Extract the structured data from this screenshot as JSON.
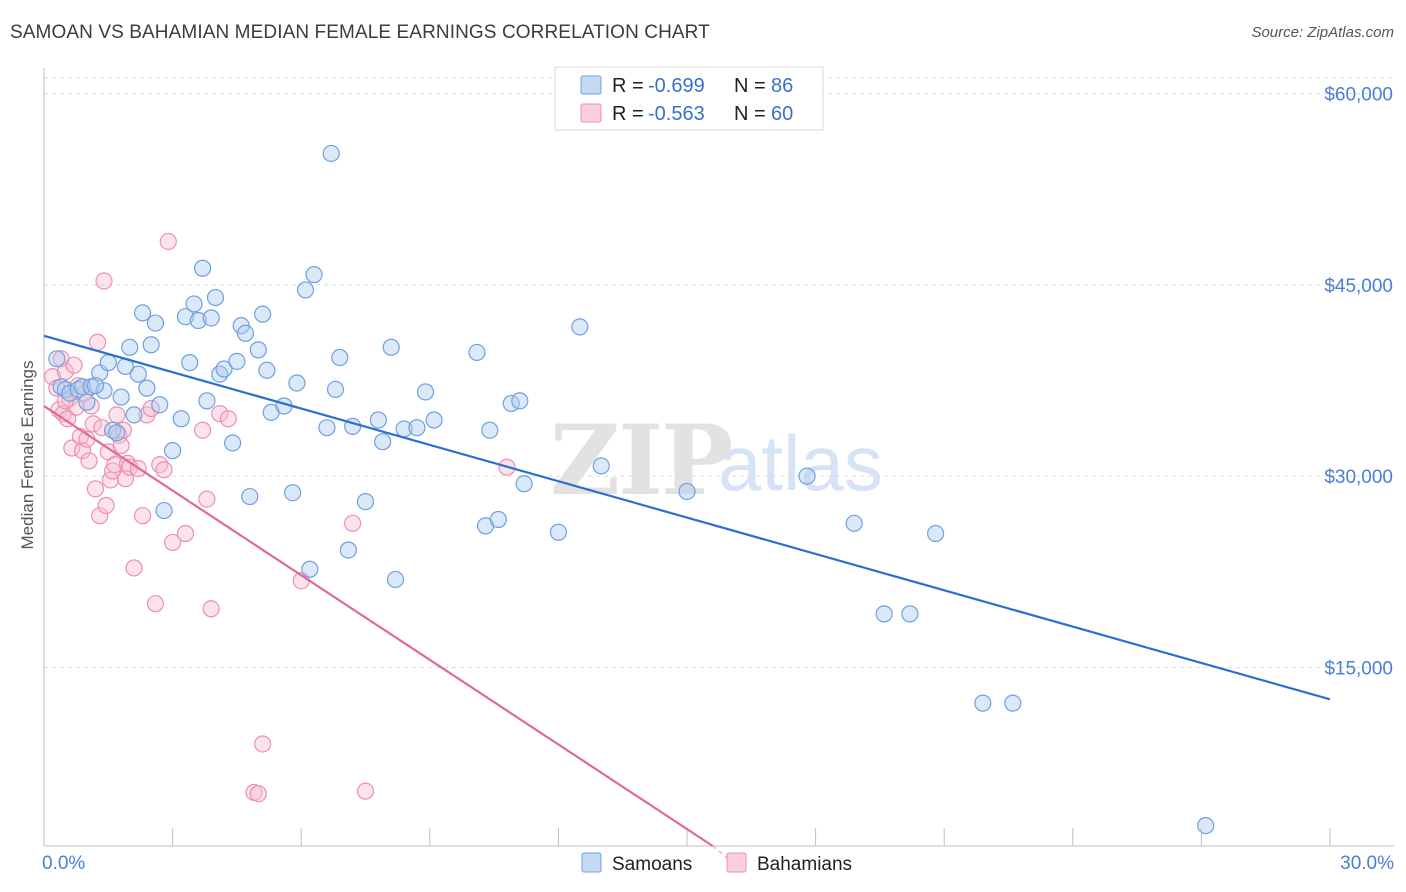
{
  "header": {
    "title": "SAMOAN VS BAHAMIAN MEDIAN FEMALE EARNINGS CORRELATION CHART",
    "source": "Source: ZipAtlas.com"
  },
  "watermark": {
    "zip": "ZIP",
    "atlas": "atlas"
  },
  "legend": {
    "rows": [
      {
        "r_label": "R = ",
        "r_value": "-0.699",
        "n_label": "N = ",
        "n_value": "86",
        "color": "#6fa0e0"
      },
      {
        "r_label": "R = ",
        "r_value": "-0.563",
        "n_label": "N = ",
        "n_value": "60",
        "color": "#ee8fb0"
      }
    ]
  },
  "bottom_legend": [
    "Samoans",
    "Bahamians"
  ],
  "chart_data": {
    "type": "scatter",
    "title": "SAMOAN VS BAHAMIAN MEDIAN FEMALE EARNINGS CORRELATION CHART",
    "xlabel": "",
    "ylabel": "Median Female Earnings",
    "xlim": [
      0,
      30
    ],
    "ylim": [
      1000,
      62000
    ],
    "x_tick_labels": [
      "0.0%",
      "30.0%"
    ],
    "y_ticks": [
      15000,
      30000,
      45000,
      60000
    ],
    "y_tick_labels": [
      "$15,000",
      "$30,000",
      "$45,000",
      "$60,000"
    ],
    "grid": "horizontal dashed",
    "legend_position": "top-center",
    "colors": {
      "samoans": "#6fa0e0",
      "samoans_line": "#2a6fd1",
      "bahamians": "#ee8fb0",
      "bahamians_line": "#e0689a"
    },
    "series": [
      {
        "name": "Samoans",
        "trend": {
          "x": [
            0,
            30
          ],
          "y": [
            41000,
            12500
          ]
        },
        "points": [
          [
            0.3,
            39200
          ],
          [
            0.4,
            37000
          ],
          [
            0.5,
            36800
          ],
          [
            0.6,
            36500
          ],
          [
            0.8,
            36800
          ],
          [
            0.9,
            37000
          ],
          [
            1.0,
            35800
          ],
          [
            1.1,
            37000
          ],
          [
            1.3,
            38100
          ],
          [
            1.4,
            36700
          ],
          [
            1.5,
            38900
          ],
          [
            1.6,
            33600
          ],
          [
            1.7,
            33400
          ],
          [
            1.8,
            36200
          ],
          [
            2.0,
            40100
          ],
          [
            2.1,
            34800
          ],
          [
            2.2,
            38000
          ],
          [
            2.3,
            42800
          ],
          [
            2.5,
            40300
          ],
          [
            2.6,
            42000
          ],
          [
            2.7,
            35600
          ],
          [
            2.8,
            27300
          ],
          [
            3.0,
            32000
          ],
          [
            3.2,
            34500
          ],
          [
            3.3,
            42500
          ],
          [
            3.4,
            38900
          ],
          [
            3.5,
            43500
          ],
          [
            3.6,
            42200
          ],
          [
            3.7,
            46300
          ],
          [
            3.8,
            35900
          ],
          [
            3.9,
            42400
          ],
          [
            4.0,
            44000
          ],
          [
            4.1,
            38000
          ],
          [
            4.2,
            38400
          ],
          [
            4.4,
            32600
          ],
          [
            4.5,
            39000
          ],
          [
            4.6,
            41800
          ],
          [
            4.7,
            41200
          ],
          [
            4.8,
            28400
          ],
          [
            5.0,
            39900
          ],
          [
            5.1,
            42700
          ],
          [
            5.2,
            38300
          ],
          [
            5.3,
            35000
          ],
          [
            5.6,
            35500
          ],
          [
            5.8,
            28700
          ],
          [
            6.1,
            44600
          ],
          [
            6.2,
            22700
          ],
          [
            6.3,
            45800
          ],
          [
            6.6,
            33800
          ],
          [
            6.8,
            36800
          ],
          [
            6.9,
            39300
          ],
          [
            7.1,
            24200
          ],
          [
            7.2,
            33900
          ],
          [
            7.5,
            28000
          ],
          [
            7.8,
            34400
          ],
          [
            7.9,
            32700
          ],
          [
            8.1,
            40100
          ],
          [
            8.2,
            21900
          ],
          [
            8.4,
            33700
          ],
          [
            8.7,
            33800
          ],
          [
            8.9,
            36600
          ],
          [
            9.1,
            34400
          ],
          [
            10.1,
            39700
          ],
          [
            10.3,
            26100
          ],
          [
            10.4,
            33600
          ],
          [
            10.6,
            26600
          ],
          [
            10.9,
            35700
          ],
          [
            11.1,
            35900
          ],
          [
            11.2,
            29400
          ],
          [
            12.0,
            25600
          ],
          [
            12.5,
            41700
          ],
          [
            13.0,
            30800
          ],
          [
            15.0,
            28800
          ],
          [
            17.8,
            30000
          ],
          [
            18.9,
            26300
          ],
          [
            19.6,
            19200
          ],
          [
            20.2,
            19200
          ],
          [
            20.8,
            25500
          ],
          [
            21.9,
            12200
          ],
          [
            22.6,
            12200
          ],
          [
            27.1,
            2600
          ],
          [
            6.7,
            55300
          ],
          [
            1.2,
            37100
          ],
          [
            1.9,
            38600
          ],
          [
            2.4,
            36900
          ],
          [
            5.9,
            37300
          ]
        ]
      },
      {
        "name": "Bahamians",
        "trend": {
          "x": [
            0,
            15.6
          ],
          "y": [
            35500,
            1000
          ]
        },
        "points": [
          [
            0.2,
            37800
          ],
          [
            0.3,
            36900
          ],
          [
            0.35,
            35200
          ],
          [
            0.4,
            39200
          ],
          [
            0.45,
            34900
          ],
          [
            0.5,
            38200
          ],
          [
            0.55,
            34500
          ],
          [
            0.6,
            36100
          ],
          [
            0.65,
            32200
          ],
          [
            0.7,
            38700
          ],
          [
            0.75,
            35400
          ],
          [
            0.8,
            37100
          ],
          [
            0.85,
            33100
          ],
          [
            0.9,
            32000
          ],
          [
            0.95,
            36500
          ],
          [
            1.0,
            32900
          ],
          [
            1.05,
            31200
          ],
          [
            1.1,
            35500
          ],
          [
            1.15,
            34100
          ],
          [
            1.2,
            29000
          ],
          [
            1.25,
            40500
          ],
          [
            1.3,
            26900
          ],
          [
            1.35,
            33800
          ],
          [
            1.4,
            45300
          ],
          [
            1.45,
            27700
          ],
          [
            1.5,
            31900
          ],
          [
            1.55,
            29700
          ],
          [
            1.6,
            30400
          ],
          [
            1.65,
            30900
          ],
          [
            1.7,
            34800
          ],
          [
            1.75,
            33200
          ],
          [
            1.8,
            32400
          ],
          [
            1.85,
            33600
          ],
          [
            1.9,
            29800
          ],
          [
            1.95,
            31000
          ],
          [
            2.0,
            30700
          ],
          [
            2.1,
            22800
          ],
          [
            2.2,
            30600
          ],
          [
            2.3,
            26900
          ],
          [
            2.4,
            34800
          ],
          [
            2.5,
            35300
          ],
          [
            2.6,
            20000
          ],
          [
            2.7,
            30900
          ],
          [
            2.8,
            30500
          ],
          [
            2.9,
            48400
          ],
          [
            3.0,
            24800
          ],
          [
            3.3,
            25500
          ],
          [
            3.7,
            33600
          ],
          [
            3.8,
            28200
          ],
          [
            3.9,
            19600
          ],
          [
            4.1,
            34900
          ],
          [
            4.3,
            34500
          ],
          [
            4.9,
            5200
          ],
          [
            5.1,
            9000
          ],
          [
            5.0,
            5100
          ],
          [
            6.0,
            21800
          ],
          [
            7.2,
            26300
          ],
          [
            7.5,
            5300
          ],
          [
            10.8,
            30700
          ],
          [
            0.5,
            35900
          ]
        ]
      }
    ]
  }
}
